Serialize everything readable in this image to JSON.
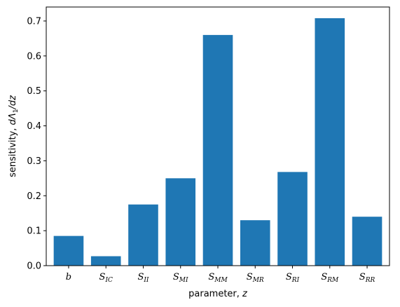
{
  "chart_data": {
    "type": "bar",
    "xlabel": "parameter, z",
    "ylabel": "sensitivity, dΛ1/dz",
    "ylim": [
      0,
      0.74
    ],
    "yticks": [
      "0.0",
      "0.1",
      "0.2",
      "0.3",
      "0.4",
      "0.5",
      "0.6",
      "0.7"
    ],
    "categories": [
      {
        "main": "b",
        "sub": ""
      },
      {
        "main": "S",
        "sub": "IC"
      },
      {
        "main": "S",
        "sub": "II"
      },
      {
        "main": "S",
        "sub": "MI"
      },
      {
        "main": "S",
        "sub": "MM"
      },
      {
        "main": "S",
        "sub": "MR"
      },
      {
        "main": "S",
        "sub": "RI"
      },
      {
        "main": "S",
        "sub": "RM"
      },
      {
        "main": "S",
        "sub": "RR"
      }
    ],
    "values": [
      0.085,
      0.027,
      0.175,
      0.25,
      0.66,
      0.13,
      0.268,
      0.708,
      0.14
    ],
    "bar_color": "#1f77b4",
    "grid": false,
    "legend": "none"
  }
}
